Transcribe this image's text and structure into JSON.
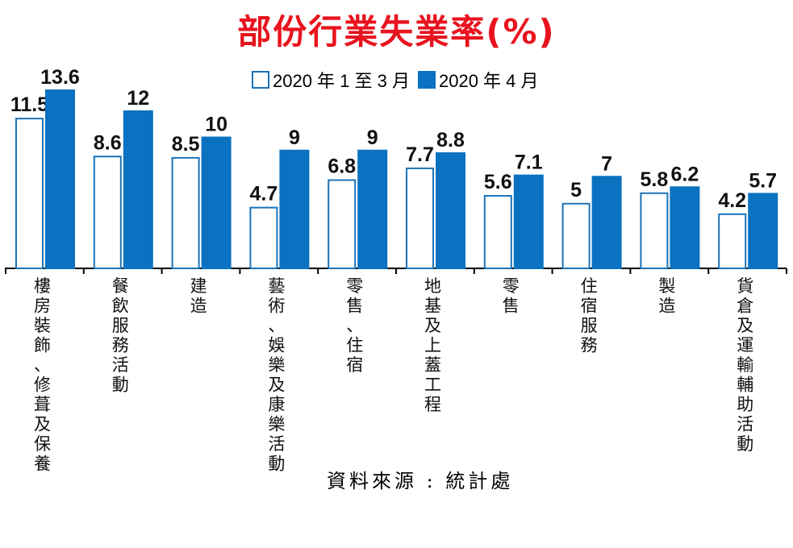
{
  "chart_data": {
    "type": "bar",
    "title": "部份行業失業率(%)",
    "categories": [
      "樓房裝飾、修葺及保養",
      "餐飲服務活動",
      "建造",
      "藝術、娛樂及康樂活動",
      "零售、住宿",
      "地基及上蓋工程",
      "零售",
      "住宿服務",
      "製造",
      "貨倉及運輸輔助活動"
    ],
    "series": [
      {
        "name": "2020 年 1 至 3 月",
        "values": [
          11.5,
          8.6,
          8.5,
          4.7,
          6.8,
          7.7,
          5.6,
          5,
          5.8,
          4.2
        ],
        "labels": [
          "11.5",
          "8.6",
          "8.5",
          "4.7",
          "6.8",
          "7.7",
          "5.6",
          "5",
          "5.8",
          "4.2"
        ]
      },
      {
        "name": "2020 年 4 月",
        "values": [
          13.6,
          12,
          10,
          9,
          9,
          8.8,
          7.1,
          7,
          6.2,
          5.7
        ],
        "labels": [
          "13.6",
          "12",
          "10",
          "9",
          "9",
          "8.8",
          "7.1",
          "7",
          "6.2",
          "5.7"
        ]
      }
    ],
    "ylim": [
      0,
      14
    ],
    "grid": false,
    "legend_position": "top",
    "source": "資料來源 : 統計處",
    "colors": {
      "title": "#e8141e",
      "series0_fill": "#ffffff",
      "series0_border": "#1a73b8",
      "series1_fill": "#0a72c0",
      "axis": "#000000"
    }
  }
}
